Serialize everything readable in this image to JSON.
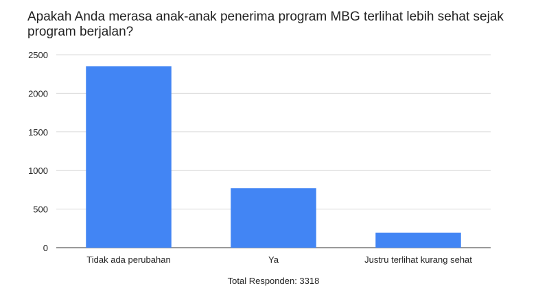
{
  "chart_data": {
    "type": "bar",
    "title": "Apakah Anda merasa anak-anak penerima program MBG terlihat lebih sehat sejak program berjalan?",
    "categories": [
      "Tidak ada perubahan",
      "Ya",
      "Justru terlihat kurang sehat"
    ],
    "values": [
      2350,
      770,
      195
    ],
    "xlabel": "Total Responden: 3318",
    "ylabel": "",
    "ylim": [
      0,
      2500
    ],
    "yticks": [
      0,
      500,
      1000,
      1500,
      2000,
      2500
    ],
    "grid": true,
    "legend": "none",
    "colors": {
      "bar": "#4285f4",
      "grid": "#d9d9d9",
      "axis": "#333333"
    }
  }
}
